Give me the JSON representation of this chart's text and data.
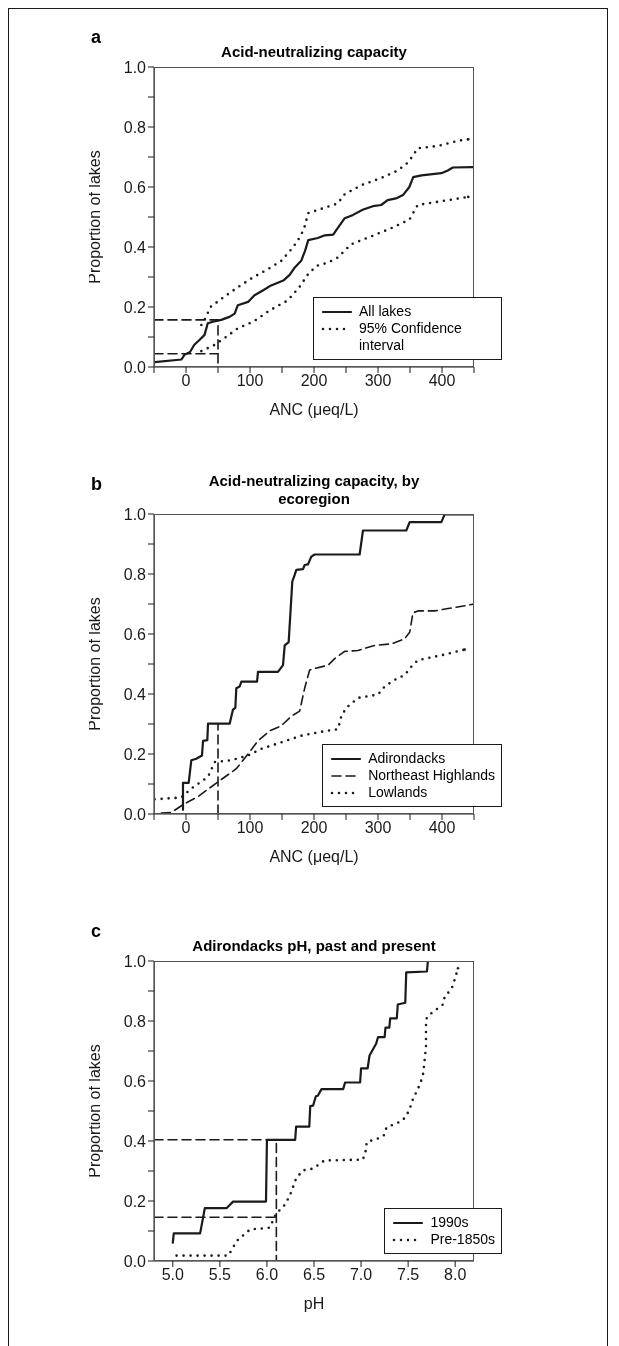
{
  "chart_data": [
    {
      "type": "line",
      "title": "Acid-neutralizing capacity",
      "xlabel": "ANC (μeq/L)",
      "ylabel": "Proportion of lakes",
      "annotations": [
        "a"
      ],
      "legend": "bottom right",
      "xlim": [
        -50,
        450
      ],
      "xticks": [
        {
          "value": -50,
          "label": null
        },
        0,
        {
          "value": 50,
          "label": null
        },
        100,
        {
          "value": 150,
          "label": null
        },
        200,
        {
          "value": 250,
          "label": null
        },
        300,
        {
          "value": 350,
          "label": null
        },
        400,
        {
          "value": 450,
          "label": null
        }
      ],
      "ylim": [
        0,
        1
      ],
      "yticks": [
        {
          "value": 0,
          "label": "0.0"
        },
        {
          "value": 0.1,
          "label": null
        },
        {
          "value": 0.2,
          "label": "0.2"
        },
        {
          "value": 0.3,
          "label": null
        },
        {
          "value": 0.4,
          "label": "0.4"
        },
        {
          "value": 0.5,
          "label": null
        },
        {
          "value": 0.6,
          "label": "0.6"
        },
        {
          "value": 0.7,
          "label": null
        },
        {
          "value": 0.8,
          "label": "0.8"
        },
        {
          "value": 0.9,
          "label": null
        },
        {
          "value": 1,
          "label": "1.0"
        }
      ],
      "series": [
        {
          "name": "All lakes",
          "color": "#1a1a1a",
          "line_style": "solid",
          "x": [
            -49,
            -7,
            -2,
            6,
            13,
            21,
            29,
            34,
            42,
            55,
            68,
            76,
            81,
            97,
            107,
            120,
            133,
            152,
            162,
            170,
            180,
            186,
            191,
            206,
            217,
            230,
            237,
            248,
            261,
            276,
            292,
            305,
            315,
            328,
            339,
            349,
            355,
            368,
            399,
            409,
            417,
            448
          ],
          "values": [
            0.016,
            0.025,
            0.042,
            0.049,
            0.074,
            0.09,
            0.107,
            0.146,
            0.151,
            0.157,
            0.167,
            0.178,
            0.206,
            0.217,
            0.239,
            0.255,
            0.272,
            0.288,
            0.307,
            0.332,
            0.354,
            0.387,
            0.423,
            0.43,
            0.439,
            0.441,
            0.463,
            0.496,
            0.507,
            0.524,
            0.536,
            0.54,
            0.556,
            0.562,
            0.573,
            0.6,
            0.633,
            0.639,
            0.646,
            0.655,
            0.665,
            0.666
          ]
        },
        {
          "name": "95% Confidence interval",
          "color": "#1a1a1a",
          "line_style": "dotted",
          "x": [
            24,
            32,
            37,
            45,
            63,
            81,
            105,
            128,
            149,
            167,
            177,
            184,
            191,
            211,
            237,
            248,
            274,
            305,
            331,
            347,
            355,
            362,
            394,
            425,
            441
          ],
          "values": [
            0.14,
            0.168,
            0.198,
            0.211,
            0.239,
            0.266,
            0.299,
            0.326,
            0.354,
            0.398,
            0.43,
            0.458,
            0.513,
            0.527,
            0.545,
            0.576,
            0.606,
            0.63,
            0.655,
            0.682,
            0.706,
            0.729,
            0.737,
            0.754,
            0.759
          ]
        },
        {
          "color": "#1a1a1a",
          "line_style": "dotted",
          "x": [
            24,
            45,
            60,
            81,
            105,
            131,
            159,
            177,
            191,
            204,
            222,
            237,
            258,
            290,
            321,
            349,
            362,
            394,
            441
          ],
          "values": [
            0.053,
            0.074,
            0.096,
            0.129,
            0.151,
            0.189,
            0.222,
            0.266,
            0.31,
            0.337,
            0.348,
            0.365,
            0.409,
            0.436,
            0.463,
            0.491,
            0.54,
            0.551,
            0.567
          ]
        },
        {
          "color": "#1a1a1a",
          "line_style": "dashed",
          "x": [
            -50,
            50,
            50
          ],
          "values": [
            0.157,
            0.157,
            0
          ]
        },
        {
          "color": "#1a1a1a",
          "line_style": "dashed",
          "x": [
            -50,
            50
          ],
          "values": [
            0.044,
            0.044
          ]
        }
      ]
    },
    {
      "type": "line",
      "title": "Acid-neutralizing capacity, by ecoregion",
      "xlabel": "ANC (μeq/L)",
      "ylabel": "Proportion of lakes",
      "annotations": [
        "b"
      ],
      "legend": "bottom right",
      "xlim": [
        -50,
        450
      ],
      "xticks": [
        {
          "value": -50,
          "label": null
        },
        0,
        {
          "value": 50,
          "label": null
        },
        100,
        {
          "value": 150,
          "label": null
        },
        200,
        {
          "value": 250,
          "label": null
        },
        300,
        {
          "value": 350,
          "label": null
        },
        400,
        {
          "value": 450,
          "label": null
        }
      ],
      "ylim": [
        0,
        1
      ],
      "yticks": [
        {
          "value": 0,
          "label": "0.0"
        },
        {
          "value": 0.1,
          "label": null
        },
        {
          "value": 0.2,
          "label": "0.2"
        },
        {
          "value": 0.3,
          "label": null
        },
        {
          "value": 0.4,
          "label": "0.4"
        },
        {
          "value": 0.5,
          "label": null
        },
        {
          "value": 0.6,
          "label": "0.6"
        },
        {
          "value": 0.7,
          "label": null
        },
        {
          "value": 0.8,
          "label": "0.8"
        },
        {
          "value": 0.9,
          "label": null
        },
        {
          "value": 1,
          "label": "1.0"
        }
      ],
      "series": [
        {
          "name": "Adirondacks",
          "color": "#1a1a1a",
          "line_style": "solid",
          "x": [
            -4.7,
            -4.7,
            4.2,
            8.3,
            16.1,
            25,
            26.6,
            33.3,
            34.4,
            68.2,
            73.4,
            77.1,
            78.6,
            83.9,
            86.5,
            111,
            112.5,
            143.7,
            151.6,
            154.2,
            160.4,
            163.5,
            166.1,
            169.8,
            172.4,
            182.8,
            185.4,
            190.6,
            195.8,
            201,
            271.3,
            276.5,
            344.2,
            349.5,
            399,
            404.2,
            448.4
          ],
          "values": [
            0.014,
            0.104,
            0.104,
            0.179,
            0.184,
            0.195,
            0.244,
            0.246,
            0.301,
            0.301,
            0.348,
            0.354,
            0.419,
            0.425,
            0.441,
            0.441,
            0.474,
            0.474,
            0.496,
            0.562,
            0.573,
            0.682,
            0.775,
            0.797,
            0.814,
            0.816,
            0.83,
            0.832,
            0.858,
            0.865,
            0.865,
            0.945,
            0.945,
            0.973,
            0.973,
            0.999,
            0.999
          ]
        },
        {
          "name": "Northeast Highlands",
          "color": "#1a1a1a",
          "line_style": "dashed",
          "x": [
            -38.5,
            -22.9,
            -4.7,
            18.7,
            50,
            78.6,
            96.9,
            112.5,
            130.7,
            148.9,
            164.6,
            177.6,
            185.4,
            193.2,
            201,
            221.9,
            232.3,
            247.9,
            268.7,
            294.8,
            320.8,
            341.6,
            349.5,
            354.7,
            362.5,
            388.5,
            448.4
          ],
          "values": [
            0.003,
            0.005,
            0.031,
            0.058,
            0.107,
            0.151,
            0.2,
            0.244,
            0.277,
            0.294,
            0.326,
            0.343,
            0.419,
            0.48,
            0.485,
            0.496,
            0.518,
            0.542,
            0.545,
            0.562,
            0.567,
            0.584,
            0.606,
            0.671,
            0.677,
            0.677,
            0.699
          ]
        },
        {
          "name": "Lowlands",
          "color": "#1a1a1a",
          "line_style": "dotted",
          "x": [
            -49,
            -7.3,
            8.3,
            34.4,
            44.8,
            70.8,
            96.9,
            117.7,
            148.9,
            180.2,
            211.4,
            237.5,
            242.7,
            250.5,
            268.7,
            300,
            310.4,
            326,
            341.6,
            352,
            362.5,
            398.9,
            435.4
          ],
          "values": [
            0.049,
            0.055,
            0.085,
            0.124,
            0.173,
            0.179,
            0.195,
            0.217,
            0.239,
            0.261,
            0.274,
            0.283,
            0.326,
            0.354,
            0.387,
            0.398,
            0.425,
            0.447,
            0.463,
            0.491,
            0.513,
            0.529,
            0.548
          ]
        },
        {
          "color": "#1a1a1a",
          "line_style": "dashed",
          "x": [
            50,
            50
          ],
          "values": [
            0,
            0.301
          ]
        }
      ]
    },
    {
      "type": "line",
      "title": "Adirondacks pH, past and present",
      "xlabel": "pH",
      "ylabel": "Proportion of lakes",
      "annotations": [
        "c"
      ],
      "legend": "bottom right",
      "xlim": [
        4.8,
        8.2
      ],
      "xticks": [
        {
          "value": 5,
          "label": "5.0"
        },
        5.5,
        {
          "value": 6,
          "label": "6.0"
        },
        6.5,
        {
          "value": 7,
          "label": "7.0"
        },
        7.5,
        {
          "value": 8,
          "label": "8.0"
        }
      ],
      "ylim": [
        0,
        1
      ],
      "yticks": [
        {
          "value": 0,
          "label": "0.0"
        },
        {
          "value": 0.1,
          "label": null
        },
        {
          "value": 0.2,
          "label": "0.2"
        },
        {
          "value": 0.3,
          "label": null
        },
        {
          "value": 0.4,
          "label": "0.4"
        },
        {
          "value": 0.5,
          "label": null
        },
        {
          "value": 0.6,
          "label": "0.6"
        },
        {
          "value": 0.7,
          "label": null
        },
        {
          "value": 0.8,
          "label": "0.8"
        },
        {
          "value": 0.9,
          "label": null
        },
        {
          "value": 1,
          "label": "1.0"
        }
      ],
      "series": [
        {
          "name": "1990s",
          "color": "#1a1a1a",
          "line_style": "solid",
          "x": [
            5.0,
            5.01,
            5.29,
            5.34,
            5.57,
            5.64,
            5.99,
            6.0,
            6.3,
            6.31,
            6.45,
            6.46,
            6.49,
            6.52,
            6.54,
            6.58,
            6.81,
            6.83,
            6.99,
            7.0,
            7.07,
            7.09,
            7.16,
            7.18,
            7.25,
            7.26,
            7.3,
            7.31,
            7.38,
            7.39,
            7.47,
            7.48,
            7.7,
            7.71
          ],
          "values": [
            0.061,
            0.092,
            0.092,
            0.176,
            0.176,
            0.198,
            0.198,
            0.404,
            0.404,
            0.448,
            0.448,
            0.516,
            0.518,
            0.549,
            0.551,
            0.573,
            0.573,
            0.595,
            0.595,
            0.642,
            0.642,
            0.685,
            0.724,
            0.746,
            0.746,
            0.778,
            0.778,
            0.809,
            0.809,
            0.855,
            0.861,
            0.962,
            0.965,
            1.0
          ]
        },
        {
          "name": "Pre-1850s",
          "color": "#1a1a1a",
          "line_style": "dotted",
          "x": [
            5.04,
            5.59,
            5.68,
            5.82,
            6.03,
            6.1,
            6.17,
            6.24,
            6.31,
            6.38,
            6.49,
            6.61,
            7.02,
            7.05,
            7.06,
            7.16,
            7.24,
            7.27,
            7.43,
            7.48,
            7.52,
            7.55,
            7.63,
            7.66,
            7.69,
            7.69,
            7.73,
            7.87,
            7.89,
            7.96,
            8.0,
            8.03
          ],
          "values": [
            0.018,
            0.018,
            0.067,
            0.105,
            0.111,
            0.16,
            0.178,
            0.215,
            0.275,
            0.302,
            0.308,
            0.335,
            0.338,
            0.368,
            0.397,
            0.406,
            0.417,
            0.445,
            0.466,
            0.483,
            0.51,
            0.538,
            0.592,
            0.625,
            0.713,
            0.806,
            0.822,
            0.855,
            0.883,
            0.905,
            0.943,
            0.976
          ]
        },
        {
          "color": "#1a1a1a",
          "line_style": "dashed",
          "x": [
            4.8,
            6.1,
            6.1
          ],
          "values": [
            0.404,
            0.404,
            0
          ]
        },
        {
          "color": "#1a1a1a",
          "line_style": "dashed",
          "x": [
            4.8,
            6.1
          ],
          "values": [
            0.146,
            0.146
          ]
        }
      ]
    }
  ]
}
